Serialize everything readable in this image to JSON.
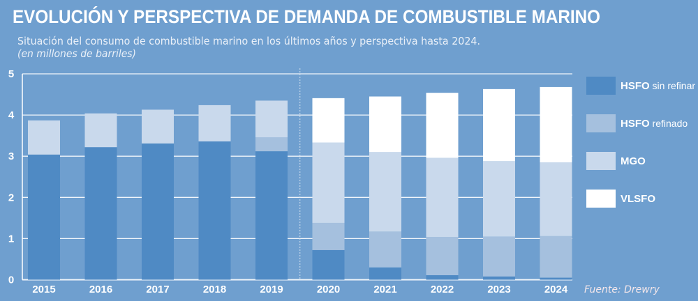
{
  "chart_data": {
    "type": "bar",
    "stacked": true,
    "title": "EVOLUCIÓN Y PERSPECTIVA DE DEMANDA DE COMBUSTIBLE MARINO",
    "subtitle": "Situación del consumo de combustible marino en los últimos años y perspectiva hasta 2024.",
    "unit_note": "(en millones de barriles)",
    "source_label": "Fuente:",
    "source": "Drewry",
    "categories": [
      "2015",
      "2016",
      "2017",
      "2018",
      "2019",
      "2020",
      "2021",
      "2022",
      "2023",
      "2024"
    ],
    "ylim": [
      0,
      5
    ],
    "yticks": [
      "0",
      "1",
      "2",
      "3",
      "4",
      "5"
    ],
    "grid": true,
    "legend_position": "right",
    "forecast_divider_after": "2019",
    "series": [
      {
        "name_bold": "HSFO",
        "name_rest": " sin refinar",
        "color": "#4f8ac4",
        "values": [
          3.04,
          3.22,
          3.31,
          3.36,
          3.12,
          0.72,
          0.3,
          0.11,
          0.08,
          0.05
        ]
      },
      {
        "name_bold": "HSFO",
        "name_rest": " refinado",
        "color": "#a5c0de",
        "values": [
          0,
          0,
          0,
          0,
          0.34,
          0.66,
          0.87,
          0.93,
          0.97,
          1.01
        ]
      },
      {
        "name_bold": "MGO",
        "name_rest": "",
        "color": "#c9d9ec",
        "values": [
          0.83,
          0.82,
          0.82,
          0.88,
          0.89,
          1.95,
          1.93,
          1.92,
          1.83,
          1.79
        ]
      },
      {
        "name_bold": "VLSFO",
        "name_rest": "",
        "color": "#ffffff",
        "values": [
          0,
          0,
          0,
          0,
          0,
          1.08,
          1.35,
          1.58,
          1.75,
          1.83
        ]
      }
    ],
    "background_color": "#6f9fcf"
  }
}
